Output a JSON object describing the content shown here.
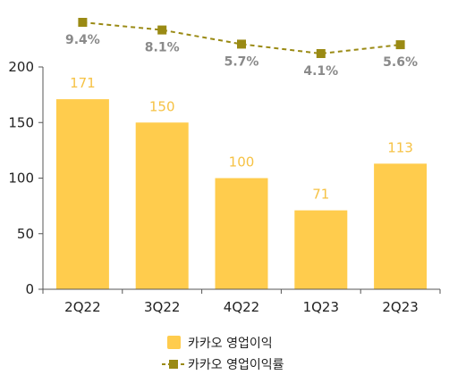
{
  "chart_data": {
    "type": "bar",
    "categories": [
      "2Q22",
      "3Q22",
      "4Q22",
      "1Q23",
      "2Q23"
    ],
    "series": [
      {
        "name": "카카오 영업이익",
        "kind": "bar",
        "values": [
          171,
          150,
          100,
          71,
          113
        ],
        "labels": [
          "171",
          "150",
          "100",
          "71",
          "113"
        ],
        "color": "#ffcc4d"
      },
      {
        "name": "카카오 영업이익률",
        "kind": "line",
        "values": [
          9.4,
          8.1,
          5.7,
          4.1,
          5.6
        ],
        "labels": [
          "9.4%",
          "8.1%",
          "5.7%",
          "4.1%",
          "5.6%"
        ],
        "color": "#9a8a14",
        "style": "dashed",
        "marker": "square"
      }
    ],
    "ylim": [
      0,
      200
    ],
    "yticks": [
      "0",
      "50",
      "100",
      "150",
      "200"
    ],
    "grid": false,
    "legend": "bottom"
  }
}
